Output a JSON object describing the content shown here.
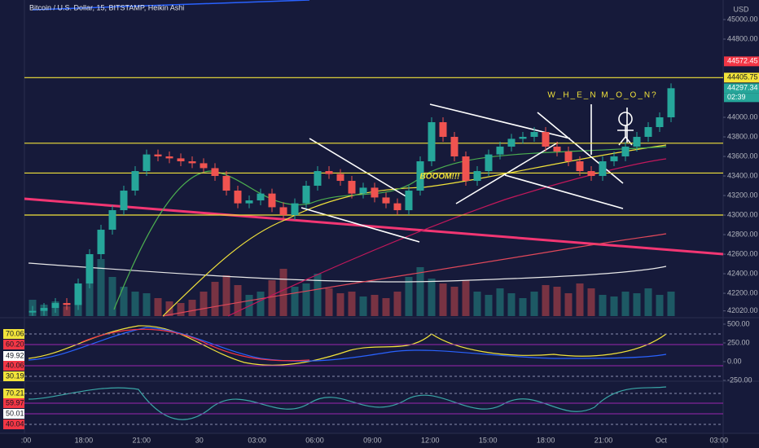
{
  "header": {
    "title": "Bitcoin / U.S. Dollar, 15, BITSTAMP, Heikin Ashi"
  },
  "chart_data": {
    "type": "candlestick",
    "closes": [
      42020,
      42050,
      42100,
      42080,
      42300,
      42600,
      42850,
      43050,
      43250,
      43450,
      43620,
      43600,
      43580,
      43550,
      43530,
      43480,
      43400,
      43250,
      43120,
      43150,
      43220,
      43080,
      43000,
      43120,
      43300,
      43450,
      43420,
      43350,
      43220,
      43280,
      43180,
      43120,
      43050,
      43250,
      43550,
      43950,
      43800,
      43600,
      43350,
      43450,
      43620,
      43700,
      43780,
      43800,
      43850,
      43700,
      43650,
      43550,
      43450,
      43400,
      43550,
      43600,
      43700,
      43800,
      43900,
      44000,
      44297.34
    ],
    "volumes": [
      20,
      14,
      18,
      12,
      40,
      55,
      70,
      48,
      36,
      30,
      28,
      22,
      18,
      16,
      20,
      30,
      42,
      50,
      38,
      26,
      30,
      44,
      58,
      36,
      40,
      52,
      34,
      28,
      30,
      24,
      26,
      22,
      30,
      48,
      60,
      46,
      40,
      36,
      44,
      30,
      26,
      34,
      28,
      22,
      30,
      38,
      36,
      28,
      40,
      34,
      26,
      24,
      30,
      28,
      34,
      26,
      30
    ],
    "up_color": "#26a69a",
    "down_color": "#ef5350",
    "ylim": [
      41967,
      45200
    ],
    "yticks": [
      {
        "value": 45000,
        "label": "45000.00"
      },
      {
        "value": 44800,
        "label": "44800.00"
      },
      {
        "value": 44000,
        "label": "44000.00"
      },
      {
        "value": 43800,
        "label": "43800.00"
      },
      {
        "value": 43600,
        "label": "43600.00"
      },
      {
        "value": 43400,
        "label": "43400.00"
      },
      {
        "value": 43200,
        "label": "43200.00"
      },
      {
        "value": 43000,
        "label": "43000.00"
      },
      {
        "value": 42800,
        "label": "42800.00"
      },
      {
        "value": 42600,
        "label": "42600.00"
      },
      {
        "value": 42400,
        "label": "42400.00"
      },
      {
        "value": 42200,
        "label": "42200.00"
      },
      {
        "value": 42020,
        "label": "42020.00"
      }
    ],
    "unit": "USD",
    "levels": [
      44405.75,
      43735,
      43430,
      43000
    ],
    "level_color": "#f2e33a",
    "badges": [
      {
        "value": 44572.45,
        "label": "44572.45",
        "color": "#f23645"
      },
      {
        "value": 44405.75,
        "label": "44405.75",
        "color": "#f2e33a"
      },
      {
        "value": 44297.34,
        "label": "44297.34",
        "color": "#26a69a"
      }
    ],
    "countdown": "02:39",
    "time_labels": [
      ":00",
      "18:00",
      "21:00",
      "30",
      "03:00",
      "06:00",
      "09:00",
      "12:00",
      "15:00",
      "18:00",
      "21:00",
      "Oct",
      "03:00"
    ],
    "annotations": [
      "BOOOM!!!",
      "W_H_E_N M_O_O_N?"
    ]
  },
  "osc1": {
    "ylim": [
      -283,
      565
    ],
    "yticks": [
      {
        "value": 500,
        "label": "500.00"
      },
      {
        "value": 250,
        "label": "250.00"
      },
      {
        "value": 0,
        "label": "0.00"
      },
      {
        "value": -250,
        "label": "-250.00"
      }
    ],
    "badges": [
      {
        "label": "70.06",
        "color": "#f2e33a"
      },
      {
        "label": "60.20",
        "color": "#f23645"
      },
      {
        "label": "49.92",
        "color": "#ffffff"
      },
      {
        "label": "40.06",
        "color": "#f23645"
      },
      {
        "label": "30.19",
        "color": "#f2e33a"
      }
    ]
  },
  "osc2": {
    "badges": [
      {
        "label": "70.21",
        "color": "#f2e33a"
      },
      {
        "label": "59.97",
        "color": "#f23645"
      },
      {
        "label": "50.01",
        "color": "#ffffff"
      },
      {
        "label": "40.04",
        "color": "#f23645"
      }
    ]
  }
}
